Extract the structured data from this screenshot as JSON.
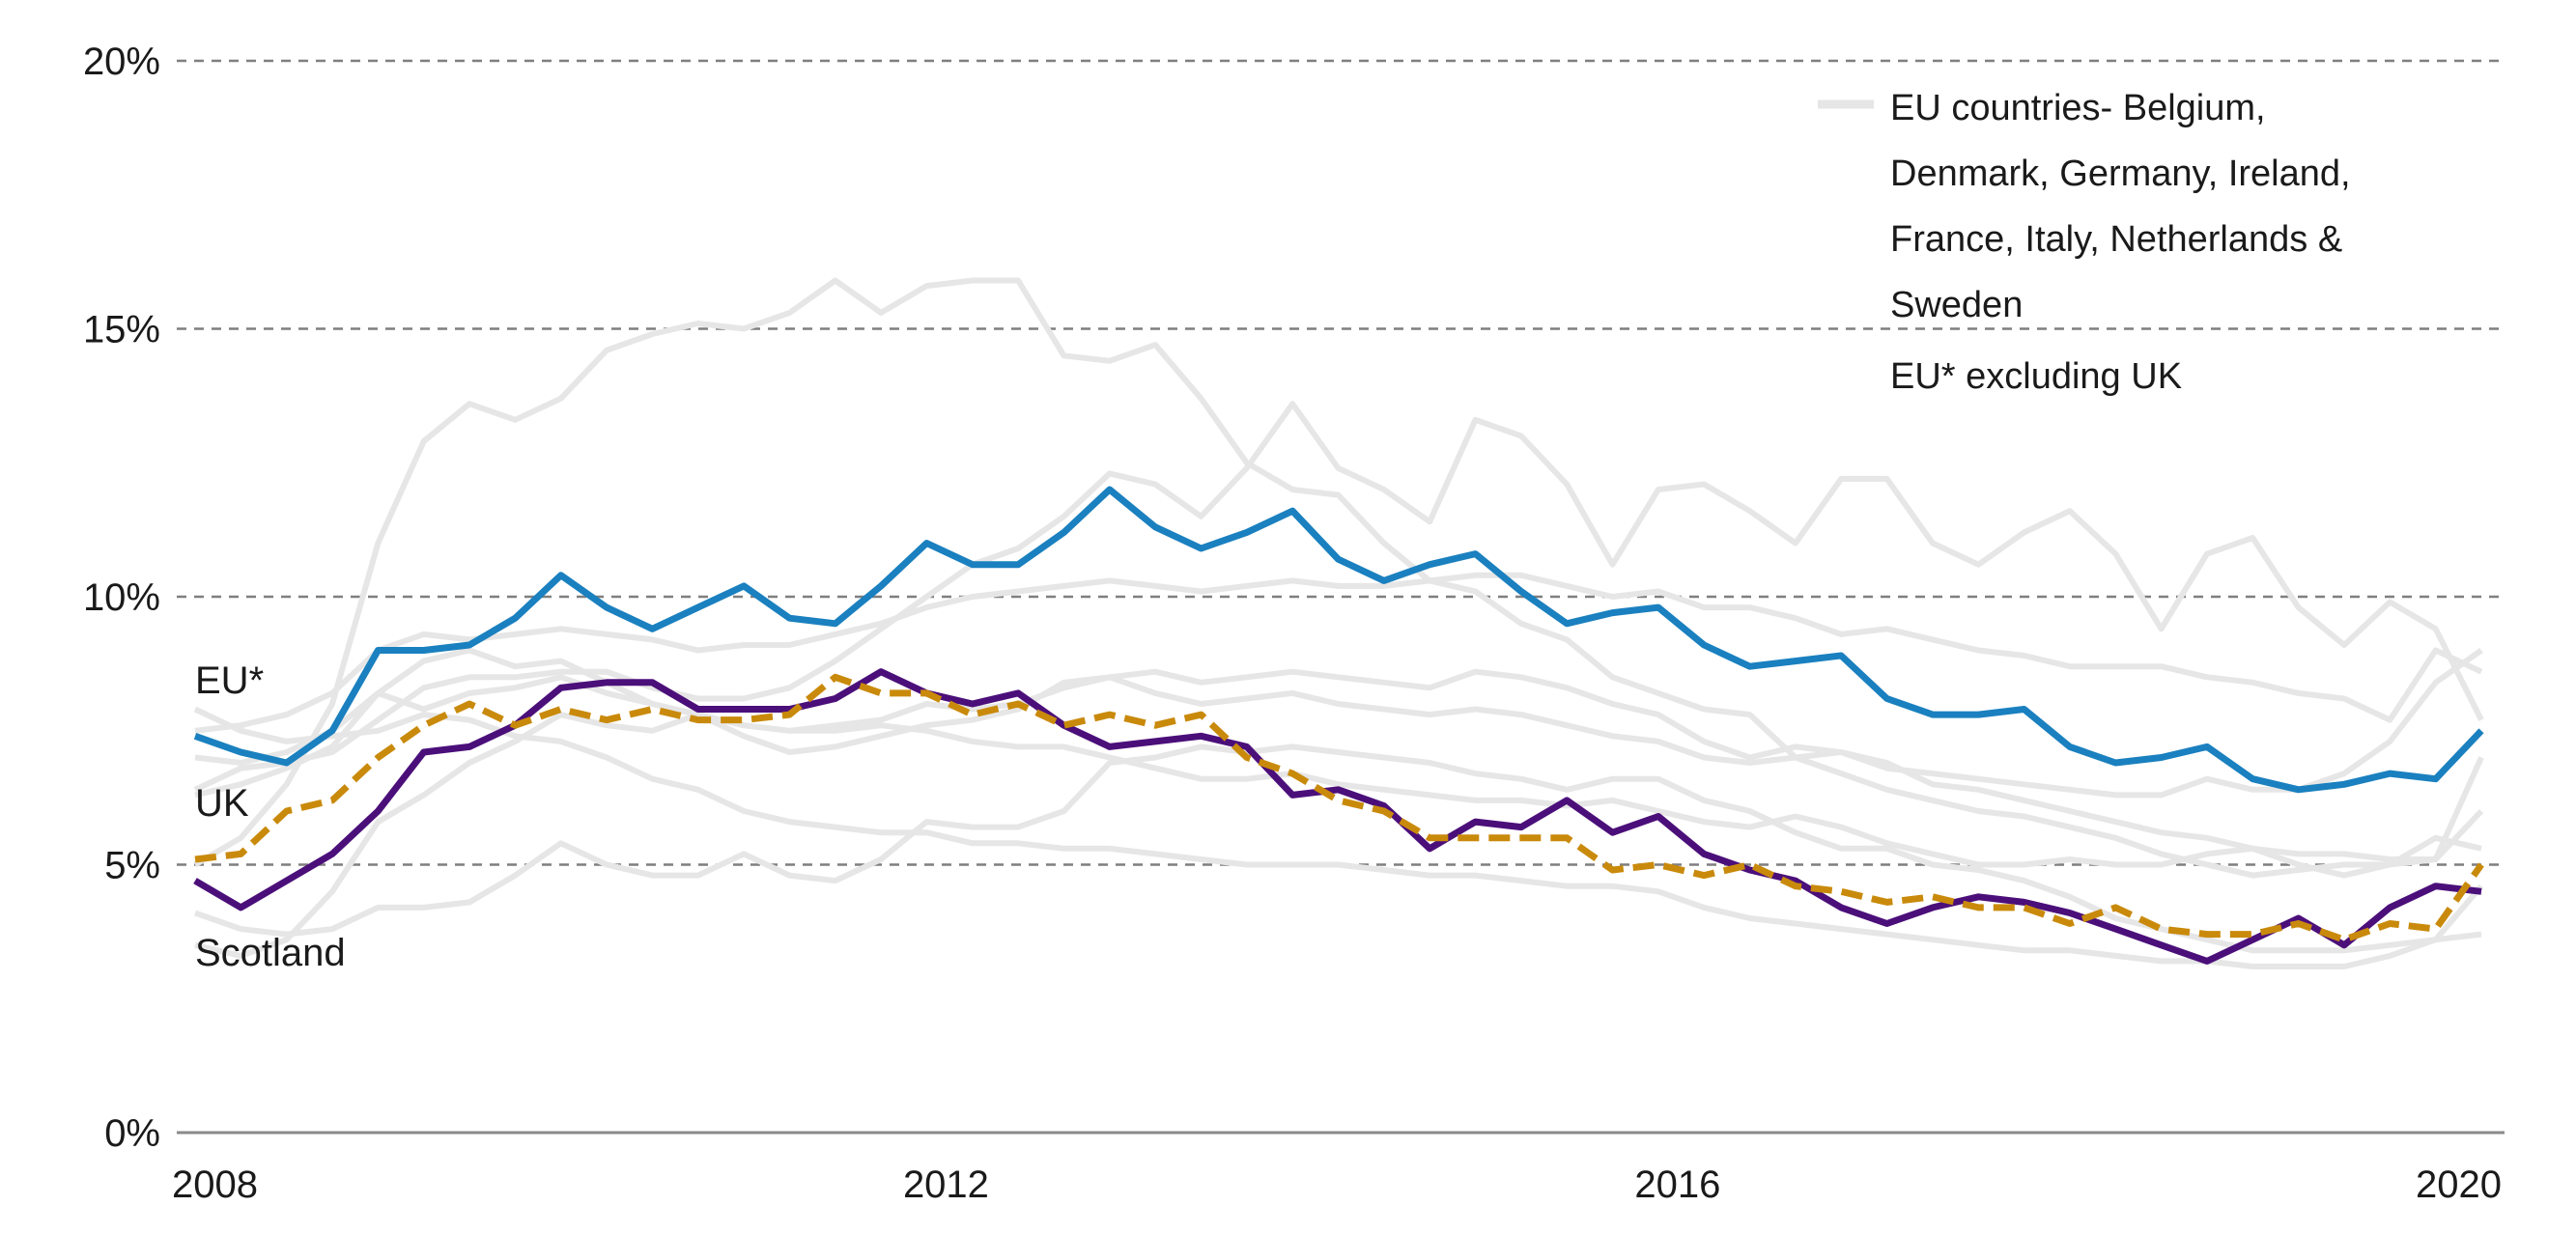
{
  "chart_data": {
    "type": "line",
    "title": "",
    "xlabel": "",
    "ylabel": "",
    "ylim": [
      0,
      20
    ],
    "y_ticks": [
      "0%",
      "5%",
      "10%",
      "15%",
      "20%"
    ],
    "y_tick_values": [
      0,
      5,
      10,
      15,
      20
    ],
    "x_tick_labels": [
      "2008",
      "2012",
      "2016",
      "2020"
    ],
    "x_tick_index": [
      0,
      16,
      32,
      48
    ],
    "x_start": "2008 Q1",
    "x_frequency": "quarterly",
    "grid": "horizontal dashed",
    "legend_placement": "top-right",
    "legend": [
      "EU countries- Belgium, Denmark, Germany, Ireland, France, Italy, Netherlands & Sweden",
      "EU* excluding UK"
    ],
    "legend_lines": [
      "EU countries- Belgium,",
      "Denmark, Germany, Ireland,",
      "France, Italy, Netherlands &",
      "Sweden"
    ],
    "legend_eu": "EU* excluding UK",
    "colors": {
      "eu": "#1a80bf",
      "scotland": "#4b0f7a",
      "uk": "#c98a0b",
      "countries": "#e6e6e6",
      "grid": "#7f7f7f",
      "axis": "#8a8a8a"
    },
    "series": [
      {
        "name": "EU*",
        "style": "solid",
        "color": "#1a80bf",
        "values": [
          7.4,
          7.1,
          6.9,
          7.5,
          9.0,
          9.0,
          9.1,
          9.6,
          10.4,
          9.8,
          9.4,
          9.8,
          10.2,
          9.6,
          9.5,
          10.2,
          11.0,
          10.6,
          10.6,
          11.2,
          12.0,
          11.3,
          10.9,
          11.2,
          11.6,
          10.7,
          10.3,
          10.6,
          10.8,
          10.1,
          9.5,
          9.7,
          9.8,
          9.1,
          8.7,
          8.8,
          8.9,
          8.1,
          7.8,
          7.8,
          7.9,
          7.2,
          6.9,
          7.0,
          7.2,
          6.6,
          6.4,
          6.5,
          6.7,
          6.6,
          7.5
        ]
      },
      {
        "name": "UK",
        "style": "dashed",
        "color": "#c98a0b",
        "values": [
          5.1,
          5.2,
          6.0,
          6.2,
          7.0,
          7.6,
          8.0,
          7.6,
          7.9,
          7.7,
          7.9,
          7.7,
          7.7,
          7.8,
          8.5,
          8.2,
          8.2,
          7.8,
          8.0,
          7.6,
          7.8,
          7.6,
          7.8,
          7.0,
          6.7,
          6.2,
          6.0,
          5.5,
          5.5,
          5.5,
          5.5,
          4.9,
          5.0,
          4.8,
          5.0,
          4.6,
          4.5,
          4.3,
          4.4,
          4.2,
          4.2,
          3.9,
          4.2,
          3.8,
          3.7,
          3.7,
          3.9,
          3.6,
          3.9,
          3.8,
          5.0
        ]
      },
      {
        "name": "Scotland",
        "style": "solid",
        "color": "#4b0f7a",
        "values": [
          4.7,
          4.2,
          4.7,
          5.2,
          6.0,
          7.1,
          7.2,
          7.6,
          8.3,
          8.4,
          8.4,
          7.9,
          7.9,
          7.9,
          8.1,
          8.6,
          8.2,
          8.0,
          8.2,
          7.6,
          7.2,
          7.3,
          7.4,
          7.2,
          6.3,
          6.4,
          6.1,
          5.3,
          5.8,
          5.7,
          6.2,
          5.6,
          5.9,
          5.2,
          4.9,
          4.7,
          4.2,
          3.9,
          4.2,
          4.4,
          4.3,
          4.1,
          3.8,
          3.5,
          3.2,
          3.6,
          4.0,
          3.5,
          4.2,
          4.6,
          4.5
        ]
      }
    ],
    "country_series": [
      [
        5.0,
        5.5,
        6.5,
        8.0,
        11.0,
        12.9,
        13.6,
        13.3,
        13.7,
        14.6,
        14.9,
        15.1,
        15.0,
        15.3,
        15.9,
        15.3,
        15.8,
        15.9,
        15.9,
        14.5,
        14.4,
        14.7,
        13.7,
        12.5,
        12.0,
        11.9,
        11.0,
        10.3,
        10.1,
        9.5,
        9.2,
        8.5,
        8.2,
        7.9,
        7.8,
        7.0,
        6.7,
        6.4,
        6.2,
        6.0,
        5.9,
        5.7,
        5.5,
        5.2,
        5.0,
        4.8,
        4.9,
        5.0,
        5.0,
        5.1,
        7.0
      ],
      [
        6.4,
        6.8,
        6.9,
        7.1,
        7.7,
        8.3,
        8.5,
        8.5,
        8.6,
        8.6,
        8.3,
        8.1,
        8.1,
        8.3,
        8.8,
        9.4,
        10.0,
        10.6,
        10.9,
        11.5,
        12.3,
        12.1,
        11.5,
        12.4,
        13.6,
        12.4,
        12.0,
        11.4,
        13.3,
        13.0,
        12.1,
        10.6,
        12.0,
        12.1,
        11.6,
        11.0,
        12.2,
        12.2,
        11.0,
        10.6,
        11.2,
        11.6,
        10.8,
        9.4,
        10.8,
        11.1,
        9.8,
        9.1,
        9.9,
        9.4,
        7.7
      ],
      [
        7.5,
        7.6,
        7.8,
        8.2,
        9.0,
        9.3,
        9.2,
        9.3,
        9.4,
        9.3,
        9.2,
        9.0,
        9.1,
        9.1,
        9.3,
        9.5,
        9.8,
        10.0,
        10.1,
        10.2,
        10.3,
        10.2,
        10.1,
        10.2,
        10.3,
        10.2,
        10.2,
        10.3,
        10.4,
        10.4,
        10.2,
        10.0,
        10.1,
        9.8,
        9.8,
        9.6,
        9.3,
        9.4,
        9.2,
        9.0,
        8.9,
        8.7,
        8.7,
        8.7,
        8.5,
        8.4,
        8.2,
        8.1,
        7.7,
        9.0,
        8.6
      ],
      [
        6.3,
        6.5,
        6.8,
        7.2,
        8.2,
        8.8,
        9.0,
        8.7,
        8.8,
        8.4,
        8.0,
        7.8,
        7.6,
        7.5,
        7.6,
        7.7,
        8.0,
        7.9,
        8.0,
        8.3,
        8.5,
        8.2,
        8.0,
        8.1,
        8.2,
        8.0,
        7.9,
        7.8,
        7.9,
        7.8,
        7.6,
        7.4,
        7.3,
        7.0,
        6.9,
        7.0,
        7.1,
        6.8,
        6.7,
        6.6,
        6.5,
        6.4,
        6.3,
        6.3,
        6.6,
        6.4,
        6.4,
        6.7,
        7.3,
        8.4,
        9.0
      ],
      [
        7.0,
        6.9,
        7.1,
        7.5,
        8.2,
        7.9,
        8.2,
        8.3,
        8.5,
        8.2,
        8.0,
        7.8,
        7.4,
        7.1,
        7.2,
        7.4,
        7.6,
        7.7,
        7.9,
        8.4,
        8.5,
        8.6,
        8.4,
        8.5,
        8.6,
        8.5,
        8.4,
        8.3,
        8.6,
        8.5,
        8.3,
        8.0,
        7.8,
        7.3,
        7.0,
        7.2,
        7.1,
        6.9,
        6.5,
        6.4,
        6.2,
        6.0,
        5.8,
        5.6,
        5.5,
        5.3,
        5.2,
        5.2,
        5.1,
        5.1,
        6.0
      ],
      [
        3.5,
        3.3,
        3.6,
        4.5,
        5.8,
        6.3,
        6.9,
        7.3,
        7.8,
        7.6,
        7.5,
        7.8,
        7.6,
        7.5,
        7.5,
        7.6,
        7.5,
        7.3,
        7.2,
        7.2,
        7.0,
        6.8,
        6.6,
        6.6,
        6.7,
        6.5,
        6.4,
        6.3,
        6.2,
        6.2,
        6.1,
        6.2,
        6.0,
        5.8,
        5.7,
        5.9,
        5.7,
        5.4,
        5.2,
        5.0,
        5.0,
        5.1,
        5.0,
        5.0,
        5.2,
        5.3,
        5.0,
        4.8,
        5.0,
        5.5,
        5.3
      ],
      [
        7.9,
        7.5,
        7.3,
        7.4,
        7.5,
        7.8,
        7.7,
        7.4,
        7.3,
        7.0,
        6.6,
        6.4,
        6.0,
        5.8,
        5.7,
        5.6,
        5.6,
        5.4,
        5.4,
        5.3,
        5.3,
        5.2,
        5.1,
        5.0,
        5.0,
        5.0,
        4.9,
        4.8,
        4.8,
        4.7,
        4.6,
        4.6,
        4.5,
        4.2,
        4.0,
        3.9,
        3.8,
        3.7,
        3.6,
        3.5,
        3.4,
        3.4,
        3.3,
        3.2,
        3.2,
        3.1,
        3.1,
        3.1,
        3.3,
        3.6,
        3.7
      ],
      [
        4.1,
        3.8,
        3.7,
        3.8,
        4.2,
        4.2,
        4.3,
        4.8,
        5.4,
        5.0,
        4.8,
        4.8,
        5.2,
        4.8,
        4.7,
        5.1,
        5.8,
        5.7,
        5.7,
        6.0,
        6.9,
        7.0,
        7.2,
        7.1,
        7.2,
        7.1,
        7.0,
        6.9,
        6.7,
        6.6,
        6.4,
        6.6,
        6.6,
        6.2,
        6.0,
        5.6,
        5.3,
        5.3,
        5.0,
        4.9,
        4.7,
        4.4,
        4.0,
        3.8,
        3.6,
        3.4,
        3.4,
        3.4,
        3.5,
        3.6,
        4.6
      ]
    ]
  }
}
